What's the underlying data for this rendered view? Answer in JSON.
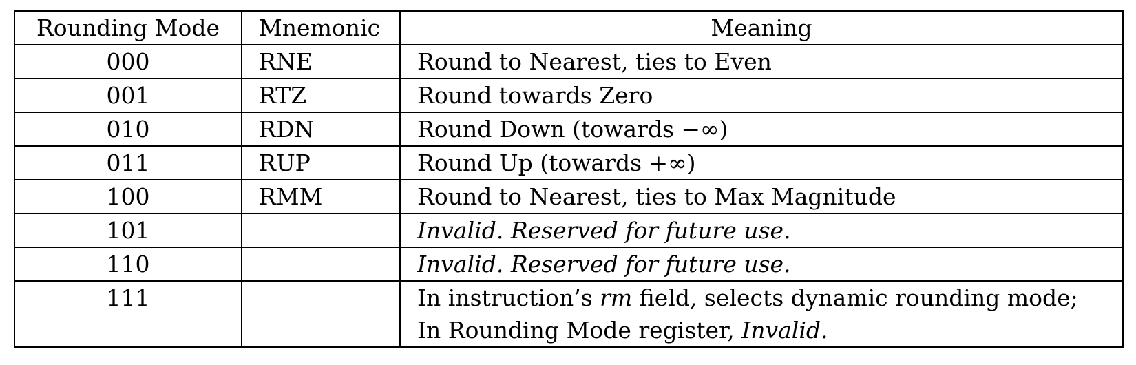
{
  "headers": {
    "mode": "Rounding Mode",
    "mnemonic": "Mnemonic",
    "meaning": "Meaning"
  },
  "rows": [
    {
      "mode": "000",
      "mnemonic": "RNE",
      "meaning": "Round to Nearest, ties to Even"
    },
    {
      "mode": "001",
      "mnemonic": "RTZ",
      "meaning": "Round towards Zero"
    },
    {
      "mode": "010",
      "mnemonic": "RDN",
      "meaning": "Round Down (towards −∞)"
    },
    {
      "mode": "011",
      "mnemonic": "RUP",
      "meaning": "Round Up (towards +∞)"
    },
    {
      "mode": "100",
      "mnemonic": "RMM",
      "meaning": "Round to Nearest, ties to Max Magnitude"
    },
    {
      "mode": "101",
      "mnemonic": "",
      "meaning": "Invalid. Reserved for future use."
    },
    {
      "mode": "110",
      "mnemonic": "",
      "meaning": "Invalid. Reserved for future use."
    },
    {
      "mode": "111",
      "mnemonic": "",
      "meaning": {
        "line1_pre": "In instruction’s ",
        "line1_em": "rm",
        "line1_post": " field, selects dynamic rounding mode;",
        "line2_pre": "In Rounding Mode register, ",
        "line2_em": "Invalid."
      }
    }
  ]
}
